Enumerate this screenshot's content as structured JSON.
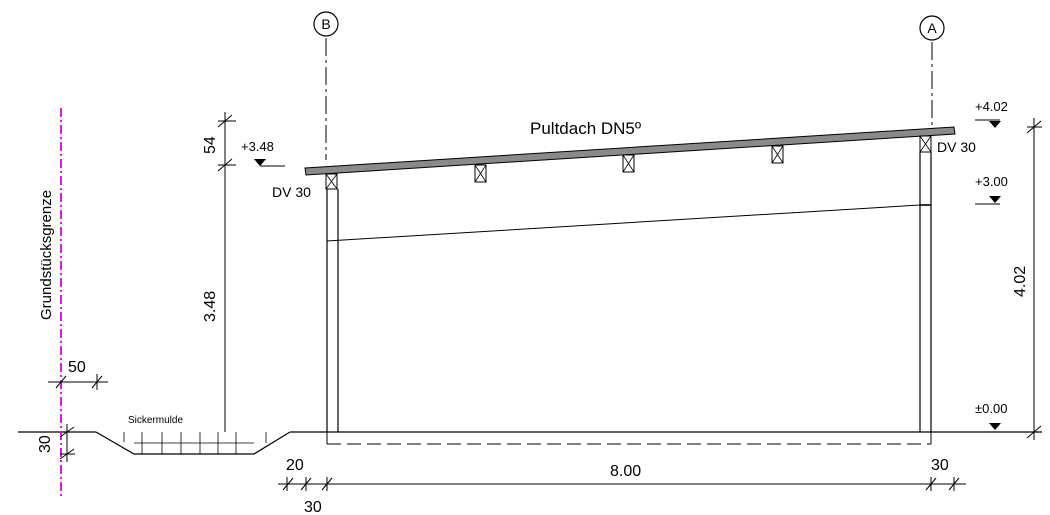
{
  "roof": {
    "label": "Pultdach DN5º",
    "color": "#8a8a8a"
  },
  "axes": {
    "left": "B",
    "right": "A"
  },
  "property_line": {
    "label": "Grundstücksgrenze",
    "color": "#e000e0"
  },
  "ditch": {
    "label": "Sickermulde"
  },
  "beams": {
    "left": "DV 30",
    "right": "DV 30"
  },
  "levels": {
    "left_top": "+3.48",
    "right_top": "+4.02",
    "right_mid": "+3.00",
    "ground": "±0.00"
  },
  "dimensions": {
    "left_top": "54",
    "left_height": "3.48",
    "right_height": "4.02",
    "offset": "50",
    "depth": "30",
    "bottom_left_a": "20",
    "bottom_left_b": "30",
    "span": "8.00",
    "bottom_right": "30"
  }
}
